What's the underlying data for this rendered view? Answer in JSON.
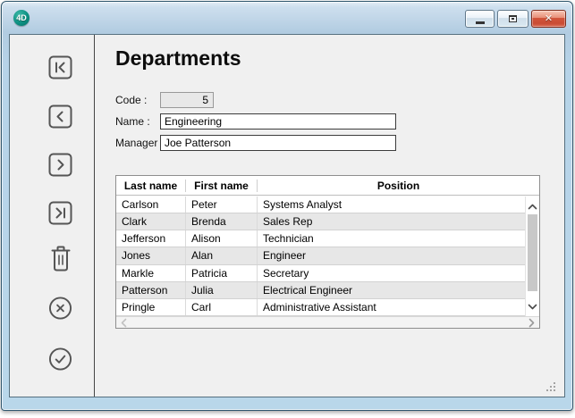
{
  "window": {
    "title": "",
    "app_logo_text": "4D",
    "controls": [
      {
        "name": "minimize-button",
        "icon": "minimize-icon"
      },
      {
        "name": "restore-button",
        "icon": "restore-icon"
      },
      {
        "name": "close-button",
        "icon": "close-icon",
        "glyph": "✕"
      }
    ],
    "close_color": "#c94c34",
    "titlebar_color": "#b6d3e8"
  },
  "sidebar": {
    "buttons": [
      {
        "name": "first-record-button",
        "icon": "first-record-icon"
      },
      {
        "name": "previous-record-button",
        "icon": "previous-record-icon"
      },
      {
        "name": "next-record-button",
        "icon": "next-record-icon"
      },
      {
        "name": "last-record-button",
        "icon": "last-record-icon"
      },
      {
        "name": "delete-record-button",
        "icon": "trash-icon"
      },
      {
        "name": "cancel-button",
        "icon": "cancel-circle-icon"
      },
      {
        "name": "accept-button",
        "icon": "check-circle-icon"
      }
    ]
  },
  "form": {
    "title": "Departments",
    "fields": [
      {
        "label": "Code :",
        "value": "5",
        "readonly": true
      },
      {
        "label": "Name :",
        "value": "Engineering",
        "readonly": false
      },
      {
        "label": "Manager :",
        "value": "Joe Patterson",
        "readonly": false
      }
    ]
  },
  "table": {
    "columns": [
      "Last name",
      "First name",
      "Position"
    ],
    "rows": [
      [
        "Carlson",
        "Peter",
        "Systems Analyst"
      ],
      [
        "Clark",
        "Brenda",
        "Sales Rep"
      ],
      [
        "Jefferson",
        "Alison",
        "Technician"
      ],
      [
        "Jones",
        "Alan",
        "Engineer"
      ],
      [
        "Markle",
        "Patricia",
        "Secretary"
      ],
      [
        "Patterson",
        "Julia",
        "Electrical Engineer"
      ],
      [
        "Pringle",
        "Carl",
        "Administrative Assistant"
      ]
    ],
    "row_alt_color": "#e7e7e7",
    "scrollbar": {
      "up_icon": "scroll-up-icon",
      "down_icon": "scroll-down-icon",
      "left_icon": "scroll-left-icon",
      "right_icon": "scroll-right-icon"
    }
  },
  "status": {
    "resize_grip_icon": "resize-grip-icon"
  }
}
